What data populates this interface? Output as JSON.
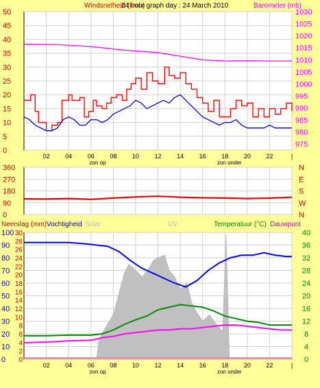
{
  "title": "24 hour graph day : 24 March 2010",
  "colors": {
    "background": "#ffff99",
    "plot_bg": "#ffffff",
    "wind_gust": "#ff0000",
    "wind_avg": "#0000cc",
    "barometer": "#ff00ff",
    "direction": "#ee0000",
    "humidity": "#0000ee",
    "temperature": "#008800",
    "dewpoint": "#ff00ff",
    "uv_fill": "#c0c0c0",
    "rain": "#ff88aa"
  },
  "x_tick_labels": [
    "02",
    "04",
    "06",
    "08",
    "10",
    "12",
    "14",
    "16",
    "18",
    "20",
    "22",
    "|"
  ],
  "sunrise_label": "zon op",
  "sunset_label": "zon onder",
  "sunrise_hour": 6.6,
  "sunset_hour": 18.4,
  "chart_data": [
    {
      "type": "line",
      "ylabel": "Windsnelheid (kmh)",
      "y2label": "Barometer (mb)",
      "ylim": [
        0,
        50
      ],
      "y_ticks": [
        0,
        5,
        10,
        15,
        20,
        25,
        30,
        35,
        40,
        45,
        50
      ],
      "y2lim": [
        972.5,
        1030
      ],
      "y2_ticks": [
        975,
        980,
        985,
        990,
        995,
        1000,
        1005,
        1010,
        1015,
        1020,
        1025,
        1030
      ],
      "xlim": [
        0,
        24
      ],
      "grid": true,
      "series": [
        {
          "key": "wind_gust",
          "step": true,
          "points": [
            [
              0,
              18
            ],
            [
              0.6,
              20
            ],
            [
              1.0,
              14
            ],
            [
              1.3,
              10
            ],
            [
              2.0,
              7
            ],
            [
              2.5,
              9
            ],
            [
              3.0,
              10
            ],
            [
              3.4,
              18
            ],
            [
              4.0,
              20
            ],
            [
              4.3,
              18
            ],
            [
              5.0,
              19
            ],
            [
              5.4,
              12
            ],
            [
              5.8,
              14
            ],
            [
              6.2,
              18
            ],
            [
              6.5,
              16
            ],
            [
              7.0,
              15
            ],
            [
              7.4,
              17
            ],
            [
              7.8,
              19
            ],
            [
              8.3,
              20
            ],
            [
              8.8,
              18
            ],
            [
              9.2,
              22
            ],
            [
              9.6,
              24
            ],
            [
              10.0,
              26
            ],
            [
              10.5,
              22
            ],
            [
              11.0,
              28
            ],
            [
              11.5,
              25
            ],
            [
              12.0,
              24
            ],
            [
              12.6,
              30
            ],
            [
              13.0,
              27
            ],
            [
              13.5,
              26
            ],
            [
              14.0,
              28
            ],
            [
              14.5,
              24
            ],
            [
              15.0,
              22
            ],
            [
              15.5,
              19
            ],
            [
              16.0,
              17
            ],
            [
              16.5,
              14
            ],
            [
              17.0,
              18
            ],
            [
              17.5,
              12
            ],
            [
              18.0,
              12
            ],
            [
              18.5,
              15
            ],
            [
              19.0,
              18
            ],
            [
              19.5,
              16
            ],
            [
              20.0,
              17
            ],
            [
              20.5,
              12
            ],
            [
              21.0,
              15
            ],
            [
              21.5,
              12
            ],
            [
              22.0,
              15
            ],
            [
              22.5,
              13
            ],
            [
              23.0,
              15
            ],
            [
              23.5,
              17
            ],
            [
              24,
              14
            ]
          ]
        },
        {
          "key": "wind_avg",
          "step": false,
          "points": [
            [
              0,
              12
            ],
            [
              0.5,
              11
            ],
            [
              1.0,
              9
            ],
            [
              1.5,
              8
            ],
            [
              2.0,
              7
            ],
            [
              2.5,
              7
            ],
            [
              3.0,
              8
            ],
            [
              3.5,
              11
            ],
            [
              4.0,
              12
            ],
            [
              4.5,
              11
            ],
            [
              5.0,
              9
            ],
            [
              5.5,
              9
            ],
            [
              6.0,
              11
            ],
            [
              6.5,
              11
            ],
            [
              7.0,
              10
            ],
            [
              7.5,
              11
            ],
            [
              8.0,
              13
            ],
            [
              8.5,
              14
            ],
            [
              9.0,
              15
            ],
            [
              9.5,
              16
            ],
            [
              10.0,
              18
            ],
            [
              10.5,
              17
            ],
            [
              11.0,
              15
            ],
            [
              11.5,
              16
            ],
            [
              12.0,
              17
            ],
            [
              12.5,
              18
            ],
            [
              13.0,
              17
            ],
            [
              13.5,
              19
            ],
            [
              14.0,
              20
            ],
            [
              14.5,
              18
            ],
            [
              15.0,
              16
            ],
            [
              15.5,
              14
            ],
            [
              16.0,
              12
            ],
            [
              16.5,
              11
            ],
            [
              17.0,
              10
            ],
            [
              17.5,
              9
            ],
            [
              18.0,
              10
            ],
            [
              18.5,
              10
            ],
            [
              19.0,
              11
            ],
            [
              19.5,
              9
            ],
            [
              20.0,
              8
            ],
            [
              20.5,
              8
            ],
            [
              21.0,
              8
            ],
            [
              21.5,
              8
            ],
            [
              22.0,
              9
            ],
            [
              22.5,
              8
            ],
            [
              23.0,
              8
            ],
            [
              24,
              8
            ]
          ]
        },
        {
          "key": "barometer",
          "axis": "y2",
          "step": false,
          "points": [
            [
              0,
              1016.5
            ],
            [
              3,
              1016.3
            ],
            [
              6,
              1015.5
            ],
            [
              9,
              1014
            ],
            [
              12,
              1013
            ],
            [
              14,
              1011.5
            ],
            [
              16,
              1010
            ],
            [
              18,
              1009.5
            ],
            [
              20,
              1009.6
            ],
            [
              22,
              1009.5
            ],
            [
              24,
              1009.5
            ]
          ]
        }
      ]
    },
    {
      "type": "scatter",
      "ylabel": "",
      "ylim": [
        0,
        360
      ],
      "y_ticks": [
        0,
        90,
        180,
        270,
        360
      ],
      "y2_ticks": [
        "N",
        "W",
        "S",
        "E",
        "N"
      ],
      "xlim": [
        0,
        24
      ],
      "series": [
        {
          "key": "direction",
          "points": [
            [
              0,
              120
            ],
            [
              2,
              118
            ],
            [
              4,
              122
            ],
            [
              6,
              116
            ],
            [
              8,
              126
            ],
            [
              10,
              134
            ],
            [
              12,
              140
            ],
            [
              14,
              132
            ],
            [
              16,
              128
            ],
            [
              18,
              126
            ],
            [
              20,
              122
            ],
            [
              22,
              125
            ],
            [
              24,
              132
            ]
          ]
        }
      ]
    },
    {
      "type": "area",
      "legend": [
        "Neerslag (mm)",
        "Vochtigheid",
        "Solar",
        "UV",
        "Temperatuur (°C)",
        "Dauwpunt"
      ],
      "y_ticks_hum": [
        0,
        10,
        20,
        30,
        40,
        50,
        60,
        70,
        80,
        90,
        100
      ],
      "y_ticks_rain": [
        0,
        2,
        4,
        6,
        8,
        10,
        12,
        14,
        16,
        18,
        20,
        22,
        24,
        26,
        28,
        30
      ],
      "y2_ticks": [
        0,
        4,
        8,
        12,
        16,
        20,
        24,
        28,
        32,
        36,
        40
      ],
      "ylim": [
        0,
        100
      ],
      "y2lim": [
        0,
        40
      ],
      "xlim": [
        0,
        24
      ],
      "series": [
        {
          "key": "uv_fill",
          "points": [
            [
              6.5,
              0
            ],
            [
              6.7,
              15
            ],
            [
              7.3,
              25
            ],
            [
              8.0,
              35
            ],
            [
              8.6,
              55
            ],
            [
              9.0,
              68
            ],
            [
              9.4,
              75
            ],
            [
              10.0,
              70
            ],
            [
              10.6,
              65
            ],
            [
              11.2,
              72
            ],
            [
              11.6,
              78
            ],
            [
              12.0,
              80
            ],
            [
              12.6,
              82
            ],
            [
              13.0,
              70
            ],
            [
              13.5,
              65
            ],
            [
              14.0,
              55
            ],
            [
              14.6,
              60
            ],
            [
              15.0,
              45
            ],
            [
              15.4,
              38
            ],
            [
              16.0,
              30
            ],
            [
              16.6,
              35
            ],
            [
              17.2,
              28
            ],
            [
              17.8,
              22
            ],
            [
              18.1,
              98
            ],
            [
              18.4,
              0
            ]
          ]
        },
        {
          "key": "humidity",
          "points": [
            [
              0,
              92
            ],
            [
              2,
              92
            ],
            [
              4,
              92
            ],
            [
              5.5,
              91
            ],
            [
              6.5,
              90
            ],
            [
              7.5,
              89
            ],
            [
              8.5,
              85
            ],
            [
              9.5,
              78
            ],
            [
              10.5,
              72
            ],
            [
              11.5,
              68
            ],
            [
              12.5,
              64
            ],
            [
              13.5,
              60
            ],
            [
              14.5,
              57
            ],
            [
              15.5,
              62
            ],
            [
              16.5,
              70
            ],
            [
              17.5,
              76
            ],
            [
              18.5,
              80
            ],
            [
              19.5,
              82
            ],
            [
              20.5,
              82
            ],
            [
              21.5,
              84
            ],
            [
              22.5,
              82
            ],
            [
              23.5,
              81
            ],
            [
              24,
              81
            ]
          ]
        },
        {
          "key": "temperature",
          "axis": "y2",
          "points": [
            [
              0,
              7.4
            ],
            [
              2,
              7.4
            ],
            [
              4,
              7.6
            ],
            [
              6,
              7.6
            ],
            [
              7,
              8
            ],
            [
              8,
              9.2
            ],
            [
              9,
              11
            ],
            [
              10,
              12.4
            ],
            [
              11,
              13.6
            ],
            [
              12,
              15.6
            ],
            [
              13,
              16.4
            ],
            [
              14,
              17.2
            ],
            [
              15,
              16.8
            ],
            [
              16,
              16.4
            ],
            [
              17,
              15.2
            ],
            [
              18,
              13.6
            ],
            [
              19,
              12.8
            ],
            [
              20,
              12
            ],
            [
              21,
              11.6
            ],
            [
              22,
              10.8
            ],
            [
              23,
              10.8
            ],
            [
              24,
              10.8
            ]
          ]
        },
        {
          "key": "dewpoint",
          "axis": "y2",
          "points": [
            [
              0,
              5.2
            ],
            [
              2,
              5.4
            ],
            [
              4,
              5.8
            ],
            [
              6,
              6
            ],
            [
              7,
              6.8
            ],
            [
              8,
              7.2
            ],
            [
              9,
              8
            ],
            [
              10,
              8.4
            ],
            [
              11,
              8.8
            ],
            [
              12,
              9.2
            ],
            [
              13,
              9.2
            ],
            [
              14,
              9.6
            ],
            [
              15,
              9.6
            ],
            [
              16,
              10
            ],
            [
              17,
              10.4
            ],
            [
              18,
              10.8
            ],
            [
              19,
              10.8
            ],
            [
              20,
              10.4
            ],
            [
              21,
              10
            ],
            [
              22,
              9.6
            ],
            [
              23,
              9.2
            ],
            [
              24,
              9.2
            ]
          ]
        },
        {
          "key": "rain",
          "points": [
            [
              0,
              0
            ],
            [
              24,
              0
            ]
          ]
        }
      ]
    }
  ]
}
